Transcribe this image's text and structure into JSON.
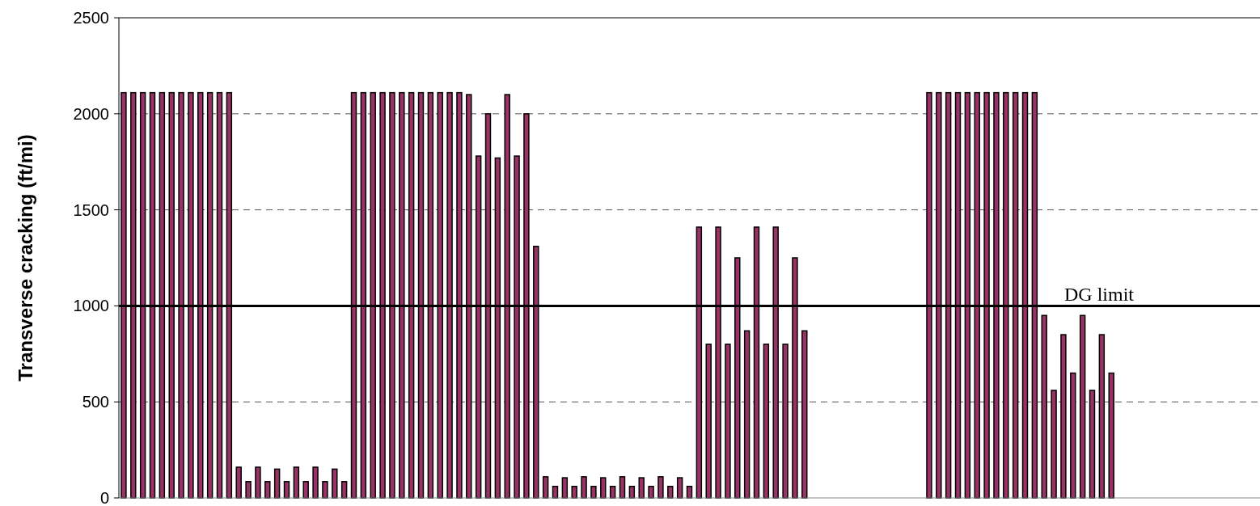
{
  "chart_data": {
    "type": "bar",
    "ylabel": "Transverse cracking (ft/mi)",
    "categories": [
      null,
      null,
      null,
      null,
      null,
      null,
      null,
      null,
      null,
      null,
      null,
      null,
      null,
      null,
      null,
      null,
      null,
      null,
      null,
      null,
      null,
      null,
      null,
      null,
      null,
      null,
      null,
      null,
      null,
      null,
      null,
      null,
      null,
      null,
      null,
      null,
      null,
      null,
      null,
      null,
      null,
      null,
      null,
      null,
      null,
      null,
      null,
      null,
      null,
      null,
      null,
      null,
      null,
      null,
      null,
      null,
      null,
      null,
      null,
      null,
      null,
      null,
      null,
      null,
      null,
      null,
      null,
      null,
      null,
      null,
      null,
      null,
      null,
      null,
      null,
      null,
      null,
      null,
      null,
      null,
      null,
      null,
      null,
      null,
      null,
      null,
      null,
      null,
      null,
      null,
      null,
      null,
      null,
      null,
      null,
      null,
      null,
      null,
      null,
      null,
      null,
      null,
      null,
      null,
      null,
      null,
      null,
      null,
      null,
      null,
      null,
      null,
      null,
      null,
      null,
      null,
      null,
      null,
      null
    ],
    "values": [
      2110,
      2110,
      2110,
      2110,
      2110,
      2110,
      2110,
      2110,
      2110,
      2110,
      2110,
      2110,
      160,
      85,
      160,
      85,
      150,
      85,
      160,
      85,
      160,
      85,
      150,
      85,
      2110,
      2110,
      2110,
      2110,
      2110,
      2110,
      2110,
      2110,
      2110,
      2110,
      2110,
      2110,
      2100,
      1780,
      2000,
      1770,
      2100,
      1780,
      2000,
      1310,
      110,
      60,
      105,
      60,
      110,
      60,
      105,
      60,
      110,
      60,
      105,
      60,
      110,
      60,
      105,
      60,
      1410,
      800,
      1410,
      800,
      1250,
      870,
      1410,
      800,
      1410,
      800,
      1250,
      870,
      0,
      0,
      0,
      0,
      0,
      0,
      0,
      0,
      0,
      0,
      0,
      0,
      2110,
      2110,
      2110,
      2110,
      2110,
      2110,
      2110,
      2110,
      2110,
      2110,
      2110,
      2110,
      950,
      560,
      850,
      650,
      950,
      560,
      850,
      650,
      0,
      0,
      0,
      0,
      0,
      0,
      0,
      0,
      0,
      0,
      0,
      0,
      0,
      0,
      0
    ],
    "color": "#993366",
    "ylim": [
      0,
      2500
    ],
    "yticks": [
      0,
      500,
      1000,
      1500,
      2000,
      2500
    ],
    "grid": "y",
    "ref_lines": [
      {
        "axis": "y",
        "value": 1000,
        "label": "DG limit",
        "color": "#000000",
        "line_style": "solid"
      }
    ]
  }
}
